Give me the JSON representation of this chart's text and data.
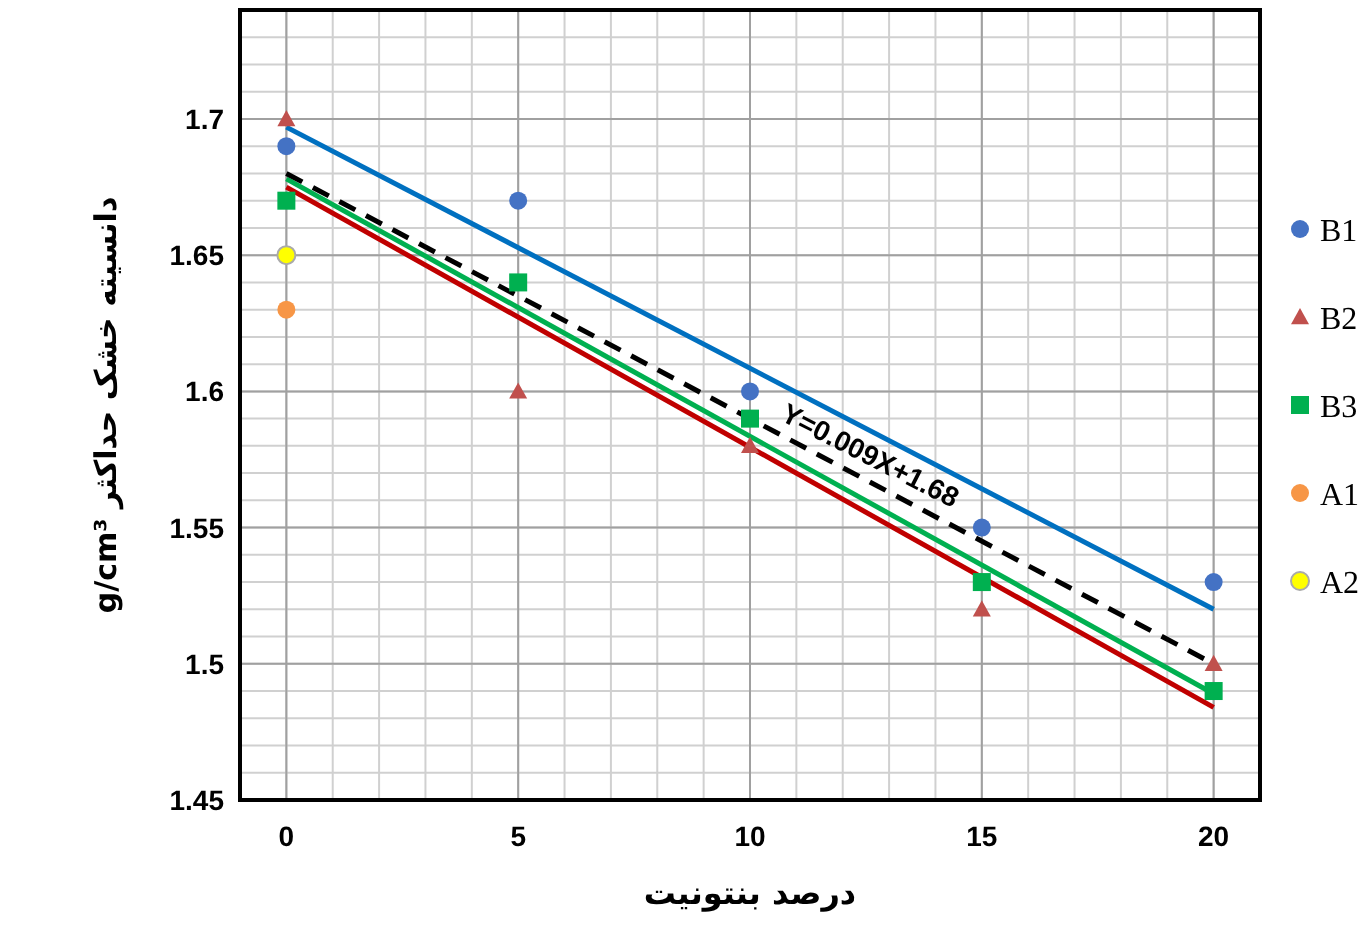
{
  "chart_data": {
    "type": "scatter",
    "xlabel": "درصد بنتونیت",
    "ylabel": "دانسیته خشک حداکثر g/cm³",
    "xlim": [
      -1,
      21
    ],
    "xticks": [
      0,
      5,
      10,
      15,
      20
    ],
    "ylim": [
      1.45,
      1.74
    ],
    "yticks": [
      1.45,
      1.5,
      1.55,
      1.6,
      1.65,
      1.7
    ],
    "grid": true,
    "legend": "right",
    "annotations": [
      {
        "text": "Y=0.009X+1.68",
        "x": 12.5,
        "y": 1.5675
      }
    ],
    "series": [
      {
        "name": "B1",
        "color": "#4472c4",
        "marker": "circle",
        "x": [
          0,
          5,
          10,
          15,
          20
        ],
        "values": [
          1.69,
          1.67,
          1.6,
          1.55,
          1.53
        ]
      },
      {
        "name": "B2",
        "color": "#c0504d",
        "marker": "triangle",
        "x": [
          0,
          5,
          10,
          15,
          20
        ],
        "values": [
          1.7,
          1.6,
          1.58,
          1.52,
          1.5
        ]
      },
      {
        "name": "B3",
        "color": "#00b050",
        "marker": "square",
        "x": [
          0,
          5,
          10,
          15,
          20
        ],
        "values": [
          1.67,
          1.64,
          1.59,
          1.53,
          1.49
        ]
      },
      {
        "name": "A1",
        "color": "#f79646",
        "marker": "circle",
        "x": [
          0
        ],
        "values": [
          1.63
        ]
      },
      {
        "name": "A2",
        "color": "#ffff00",
        "marker": "circle",
        "x": [
          0
        ],
        "values": [
          1.65
        ]
      },
      {
        "type": "line",
        "color": "#0070c0",
        "marker": "none",
        "x": [
          0,
          20
        ],
        "values": [
          1.697,
          1.52
        ]
      },
      {
        "type": "line",
        "color": "#c00000",
        "marker": "none",
        "x": [
          0,
          20
        ],
        "values": [
          1.675,
          1.484
        ]
      },
      {
        "type": "line",
        "color": "#00b050",
        "marker": "none",
        "x": [
          0,
          20
        ],
        "values": [
          1.678,
          1.489
        ]
      },
      {
        "type": "line",
        "color": "#000000",
        "marker": "none",
        "line_style": "dashed",
        "x": [
          0,
          20
        ],
        "values": [
          1.68,
          1.5
        ]
      }
    ]
  }
}
